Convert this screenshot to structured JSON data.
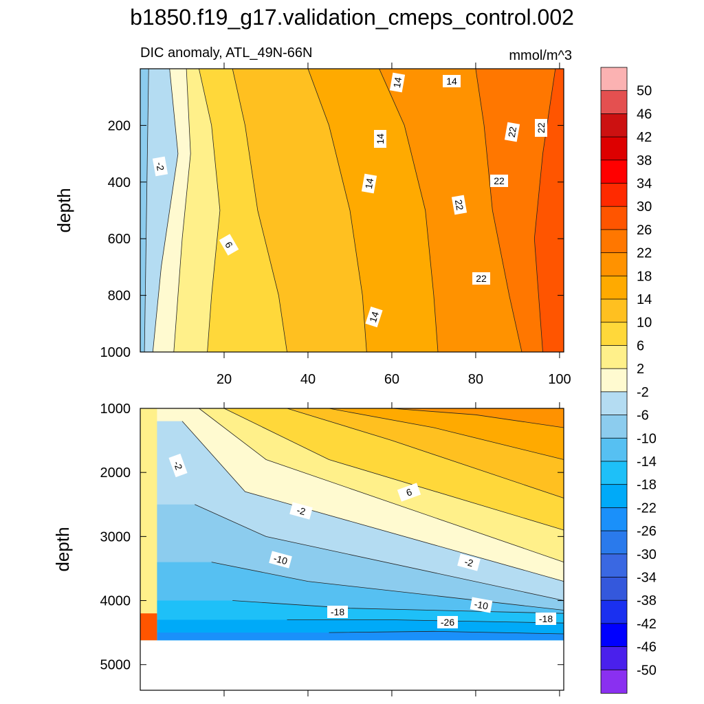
{
  "title": "b1850.f19_g17.validation_cmeps_control.002",
  "subtitle_left": "DIC anomaly, ATL_49N-66N",
  "subtitle_right": "mmol/m^3",
  "chart_data": [
    {
      "type": "contour",
      "panel": "upper",
      "xlabel": "",
      "ylabel": "depth",
      "xlim": [
        0,
        101
      ],
      "ylim": [
        1000,
        0
      ],
      "x_ticks": [
        "20",
        "40",
        "60",
        "80",
        "100"
      ],
      "y_ticks": [
        "200",
        "400",
        "600",
        "800",
        "1000"
      ],
      "x_tick_values": [
        20,
        40,
        60,
        80,
        100
      ],
      "y_tick_values": [
        200,
        400,
        600,
        800,
        1000
      ],
      "contour_labels": [
        "14",
        "14",
        "14",
        "14",
        "14",
        "-2",
        "6",
        "22",
        "22",
        "22",
        "22",
        "22"
      ],
      "description": "Mostly positive anomaly increasing from ~2 near x=5 to ~26 near x=95; small negative strip at left edge"
    },
    {
      "type": "contour",
      "panel": "lower",
      "xlabel": "",
      "ylabel": "depth",
      "xlim": [
        0,
        101
      ],
      "ylim": [
        5400,
        1000
      ],
      "y_ticks": [
        "1000",
        "2000",
        "3000",
        "4000",
        "5000"
      ],
      "y_tick_values": [
        1000,
        2000,
        3000,
        4000,
        5000
      ],
      "data_bottom_depth": 4620,
      "contour_labels": [
        "-2",
        "6",
        "-2",
        "-10",
        "-2",
        "-10",
        "-18",
        "-26",
        "-18"
      ],
      "description": "Positive (warm) values in upper right; negative anomaly band deepening to about -26 near 4400 m; warm patch at bottom-left corner"
    }
  ],
  "colorbar": {
    "labels": [
      "50",
      "46",
      "42",
      "38",
      "34",
      "30",
      "26",
      "22",
      "18",
      "14",
      "10",
      "6",
      "2",
      "-2",
      "-6",
      "-10",
      "-14",
      "-18",
      "-22",
      "-26",
      "-30",
      "-34",
      "-38",
      "-42",
      "-46",
      "-50"
    ],
    "colors": [
      "#fbb2b2",
      "#e45050",
      "#cc1111",
      "#dd0000",
      "#ff0000",
      "#ff2a00",
      "#ff5500",
      "#ff7700",
      "#ff9200",
      "#ffaa00",
      "#ffc020",
      "#ffd83a",
      "#fff08a",
      "#fffad0",
      "#b4dcf2",
      "#8cccee",
      "#56c0f2",
      "#1ec0f8",
      "#00aaf8",
      "#1a90fa",
      "#2a7aec",
      "#3a68e2",
      "#3458dc",
      "#1a30f0",
      "#0000ff",
      "#4a20ec",
      "#8a30f0"
    ]
  },
  "colors": {
    "axis": "#000000",
    "mask": "#ffffff"
  }
}
